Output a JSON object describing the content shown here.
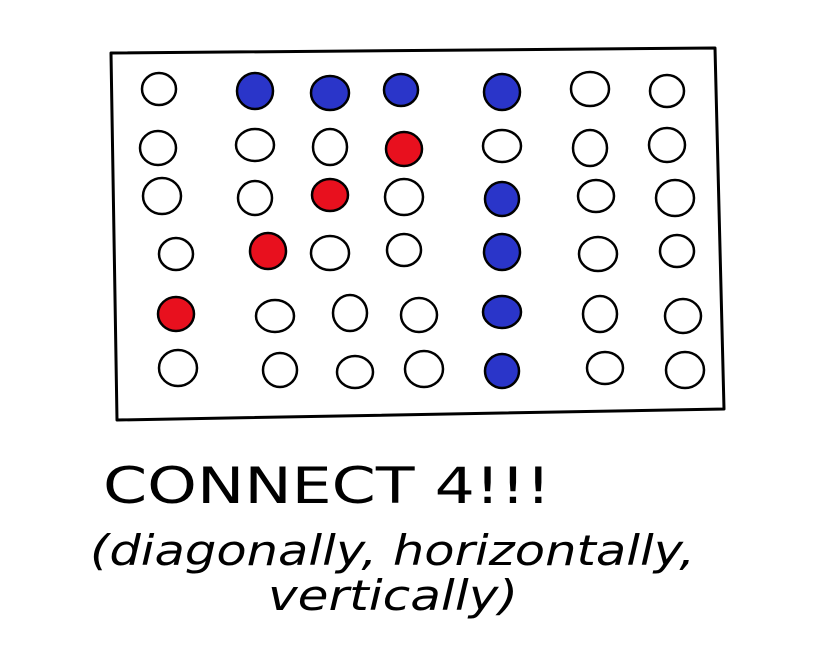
{
  "colors": {
    "red": "#e8101e",
    "blue": "#2a35c9",
    "empty": "#ffffff",
    "ink": "#000000"
  },
  "caption": {
    "line1": "CONNECT 4!!!",
    "line2": "(diagonally, horizontally,",
    "line3": "vertically)"
  },
  "board": {
    "rows": 6,
    "cols": 7,
    "cells": [
      [
        "empty",
        "blue",
        "blue",
        "blue",
        "blue",
        "empty",
        "empty"
      ],
      [
        "empty",
        "empty",
        "empty",
        "red",
        "empty",
        "empty",
        "empty"
      ],
      [
        "empty",
        "empty",
        "red",
        "empty",
        "blue",
        "empty",
        "empty"
      ],
      [
        "empty",
        "red",
        "empty",
        "empty",
        "blue",
        "empty",
        "empty"
      ],
      [
        "red",
        "empty",
        "empty",
        "empty",
        "blue",
        "empty",
        "empty"
      ],
      [
        "empty",
        "empty",
        "empty",
        "empty",
        "blue",
        "empty",
        "empty"
      ]
    ]
  }
}
